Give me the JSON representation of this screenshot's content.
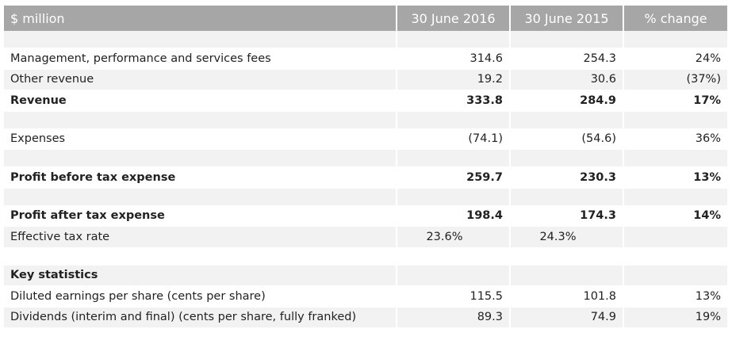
{
  "header": {
    "label": "$ million",
    "col_2016": "30 June 2016",
    "col_2015": "30 June 2015",
    "col_change": "% change"
  },
  "rows": {
    "mgmt_fees": {
      "label": "Management, performance and services fees",
      "v2016": "314.6",
      "v2015": "254.3",
      "change": "24%"
    },
    "other_rev": {
      "label": "Other revenue",
      "v2016": "19.2",
      "v2015": "30.6",
      "change": "(37%)"
    },
    "revenue": {
      "label": "Revenue",
      "v2016": "333.8",
      "v2015": "284.9",
      "change": "17%"
    },
    "expenses": {
      "label": "Expenses",
      "v2016": "(74.1)",
      "v2015": "(54.6)",
      "change": "36%"
    },
    "pbt": {
      "label": "Profit before tax expense",
      "v2016": "259.7",
      "v2015": "230.3",
      "change": "13%"
    },
    "pat": {
      "label": "Profit after tax expense",
      "v2016": "198.4",
      "v2015": "174.3",
      "change": "14%"
    },
    "eff_tax": {
      "label": "Effective tax rate",
      "v2016": "23.6%",
      "v2015": "24.3%",
      "change": ""
    },
    "key_stats": {
      "label": "Key statistics"
    },
    "eps": {
      "label": "Diluted earnings per share (cents per share)",
      "v2016": "115.5",
      "v2015": "101.8",
      "change": "13%"
    },
    "dividends": {
      "label": "Dividends (interim and final) (cents per share, fully franked)",
      "v2016": "89.3",
      "v2015": "74.9",
      "change": "19%"
    }
  }
}
